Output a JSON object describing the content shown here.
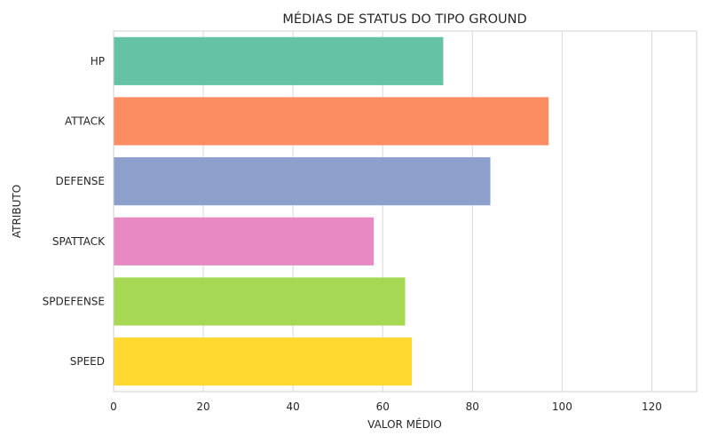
{
  "chart_data": {
    "type": "bar",
    "orientation": "horizontal",
    "title": "MÉDIAS DE STATUS DO TIPO GROUND",
    "xlabel": "VALOR MÉDIO",
    "ylabel": "ATRIBUTO",
    "xlim": [
      0,
      130
    ],
    "xticks": [
      0,
      20,
      40,
      60,
      80,
      100,
      120
    ],
    "grid": true,
    "categories": [
      "HP",
      "ATTACK",
      "DEFENSE",
      "SPATTACK",
      "SPDEFENSE",
      "SPEED"
    ],
    "values": [
      73.5,
      97,
      84,
      58,
      65,
      66.5
    ],
    "colors": [
      "#66c2a5",
      "#fc8d62",
      "#8da0cb",
      "#e78ac3",
      "#a6d854",
      "#ffd92f"
    ]
  }
}
